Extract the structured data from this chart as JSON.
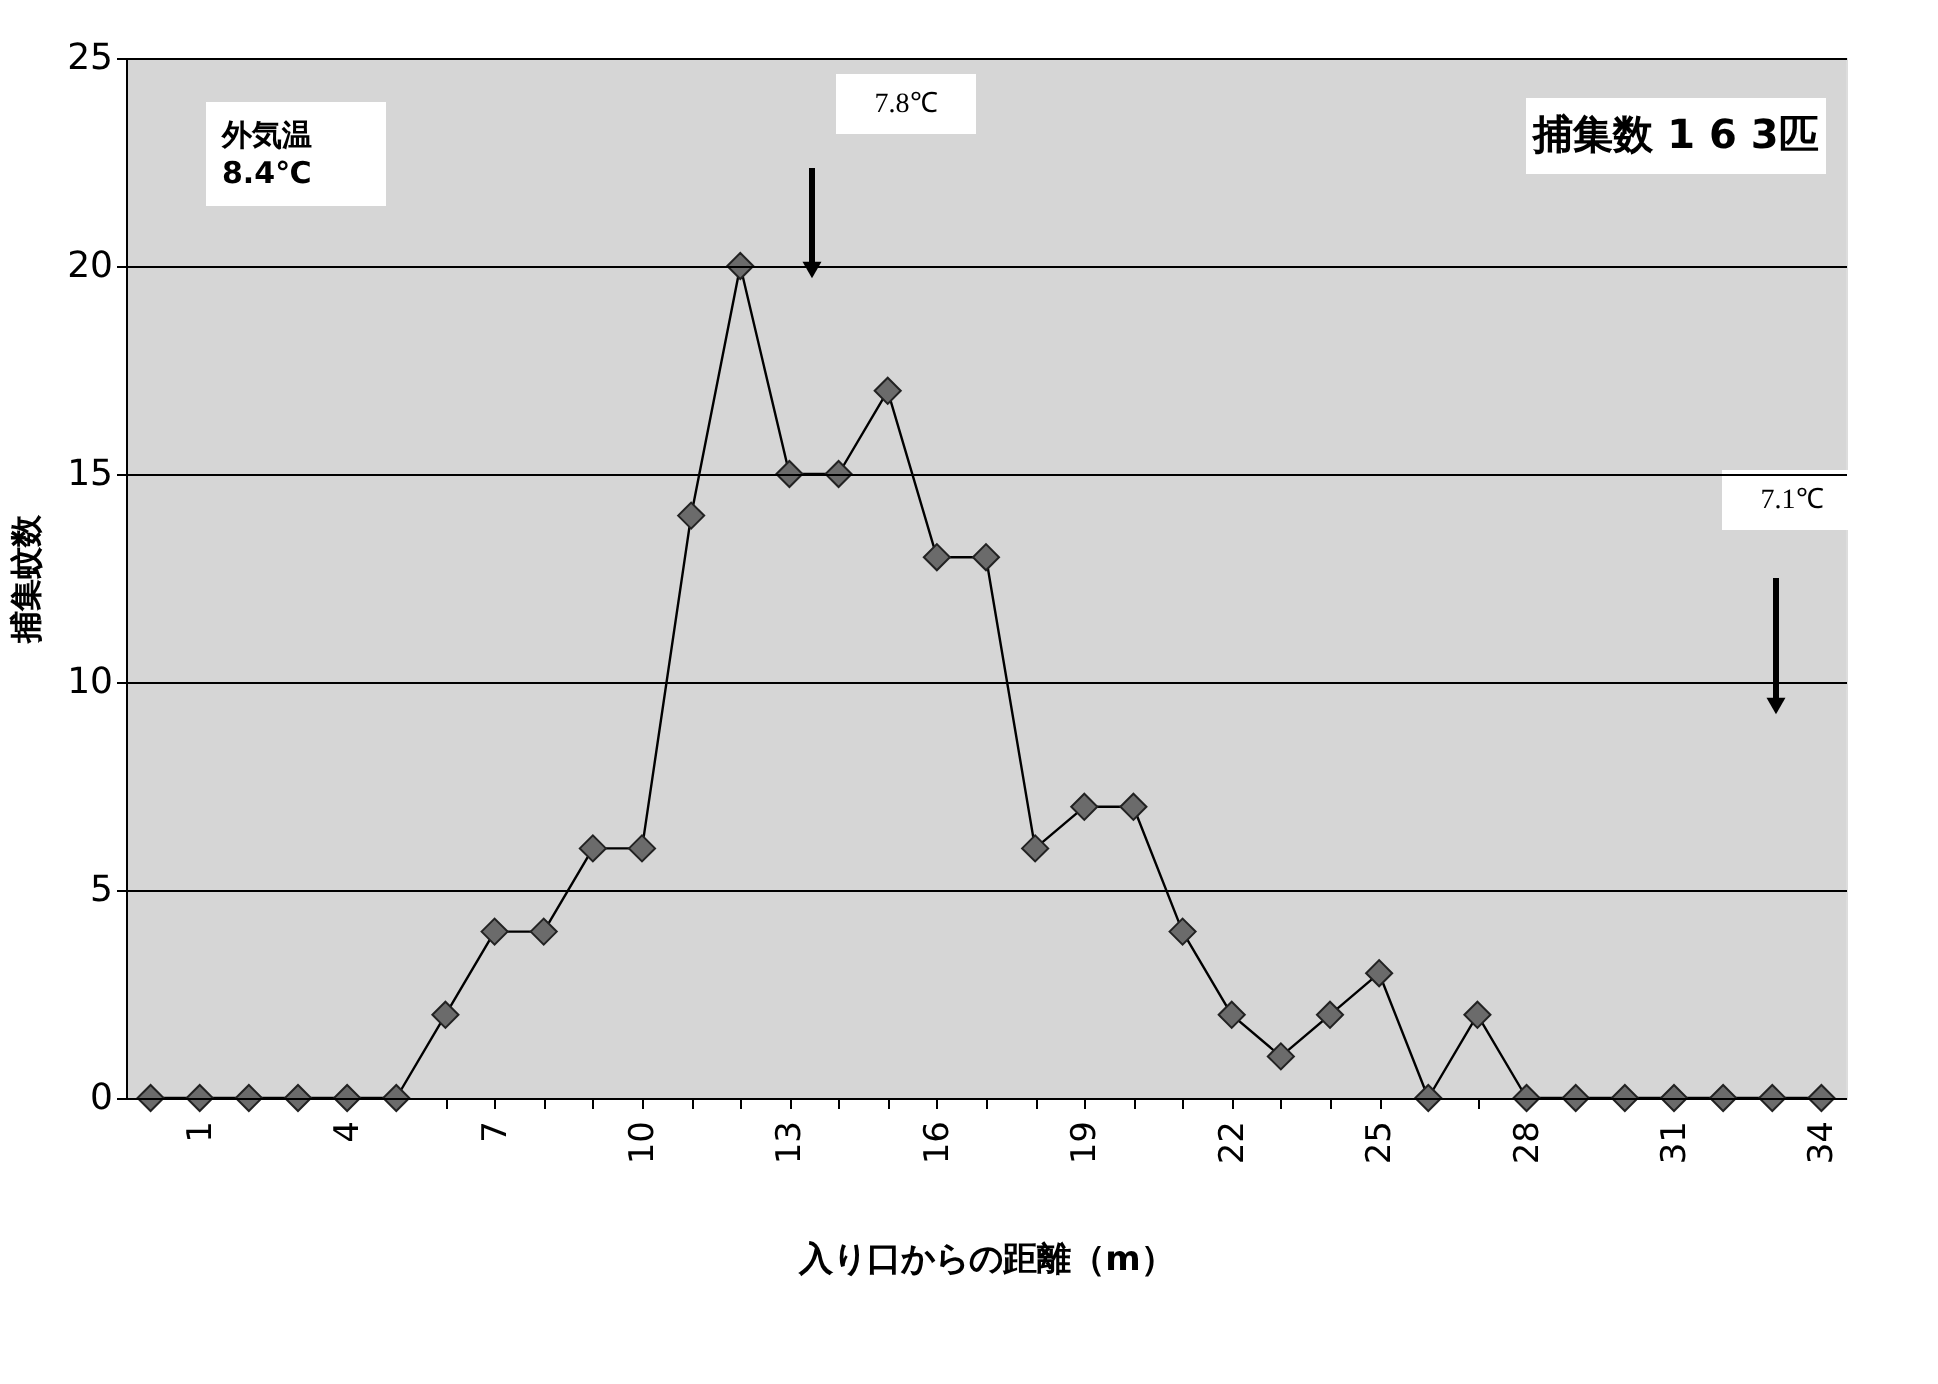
{
  "chart_data": {
    "type": "line",
    "xlabel": "入り口からの距離（m）",
    "ylabel": "捕集蚊数",
    "categories": [
      null,
      "1",
      null,
      null,
      "4",
      null,
      null,
      "7",
      null,
      null,
      "10",
      null,
      null,
      "13",
      null,
      null,
      "16",
      null,
      null,
      "19",
      null,
      null,
      "22",
      null,
      null,
      "25",
      null,
      null,
      "28",
      null,
      null,
      "31",
      null,
      null,
      "34"
    ],
    "series": [
      {
        "color": "#000000",
        "values": [
          0,
          0,
          0,
          0,
          0,
          0,
          2,
          4,
          4,
          6,
          6,
          14,
          20,
          15,
          15,
          17,
          13,
          13,
          6,
          7,
          7,
          4,
          2,
          1,
          2,
          3,
          0,
          2,
          0,
          0,
          0,
          0,
          0,
          0,
          0
        ]
      }
    ],
    "marker": "diamond",
    "line_style": "solid",
    "ylim": [
      0,
      25
    ],
    "yticks": [
      0,
      5,
      10,
      15,
      20,
      25
    ],
    "grid": "y",
    "annotations": [
      "外気温\n8.4℃",
      "7.8℃",
      "捕集数 1 6 3匹",
      "7.1℃"
    ]
  }
}
